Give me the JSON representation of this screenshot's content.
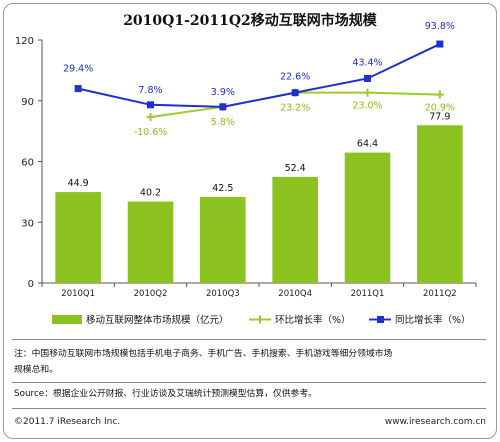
{
  "chart_data": {
    "type": "bar",
    "title": "2010Q1-2011Q2移动互联网市场规模",
    "categories": [
      "2010Q1",
      "2010Q2",
      "2010Q3",
      "2010Q4",
      "2011Q1",
      "2011Q2"
    ],
    "ylim": [
      0,
      120
    ],
    "yticks": [
      "0",
      "30",
      "60",
      "90",
      "120"
    ],
    "grid": false,
    "legend_position": "bottom",
    "series": [
      {
        "name": "移动互联网整体市场规模（亿元）",
        "kind": "bar",
        "color": "#8cc21f",
        "values": [
          44.9,
          40.2,
          42.5,
          52.4,
          64.4,
          77.9
        ],
        "labels": [
          "44.9",
          "40.2",
          "42.5",
          "52.4",
          "64.4",
          "77.9"
        ]
      },
      {
        "name": "环比增长率（%）",
        "kind": "line",
        "color": "#9ccb2c",
        "values": [
          null,
          82,
          87,
          94,
          94,
          93
        ],
        "labels": [
          null,
          "-10.6%",
          "5.8%",
          "23.2%",
          "23.0%",
          "20.9%"
        ]
      },
      {
        "name": "同比增长率（%）",
        "kind": "line",
        "color": "#1f2fd0",
        "values": [
          96,
          88,
          87,
          94,
          101,
          118
        ],
        "labels": [
          "29.4%",
          "7.8%",
          "3.9%",
          "22.6%",
          "43.4%",
          "93.8%"
        ]
      }
    ]
  },
  "note": {
    "line1": "注：中国移动互联网市场规模包括手机电子商务、手机广告、手机搜索、手机游戏等细分领域市场",
    "line2": "规模总和。"
  },
  "source": "Source：根据企业公开财报、行业访谈及艾瑞统计预测模型估算，仅供参考。",
  "footer": {
    "copyright": "©2011.7 iResearch Inc.",
    "website": "www.iresearch.com.cn"
  }
}
